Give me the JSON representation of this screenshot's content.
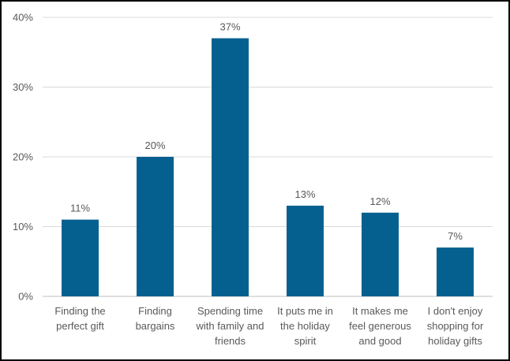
{
  "chart_data": {
    "type": "bar",
    "title": "",
    "xlabel": "",
    "ylabel": "",
    "categories": [
      [
        "Finding the",
        "perfect gift"
      ],
      [
        "Finding",
        "bargains"
      ],
      [
        "Spending time",
        "with family and",
        "friends"
      ],
      [
        "It puts me in",
        "the holiday",
        "spirit"
      ],
      [
        "It makes me",
        "feel generous",
        "and good"
      ],
      [
        "I don't enjoy",
        "shopping for",
        "holiday gifts"
      ]
    ],
    "values": [
      11,
      20,
      37,
      13,
      12,
      7
    ],
    "value_labels": [
      "11%",
      "20%",
      "37%",
      "13%",
      "12%",
      "7%"
    ],
    "yticks": [
      0,
      10,
      20,
      30,
      40
    ],
    "ytick_labels": [
      "0%",
      "10%",
      "20%",
      "30%",
      "40%"
    ],
    "ylim": [
      0,
      40
    ],
    "grid": true,
    "bar_color": "#05608F",
    "grid_color": "#D9D9D9",
    "axis_color": "#BFBFBF"
  }
}
